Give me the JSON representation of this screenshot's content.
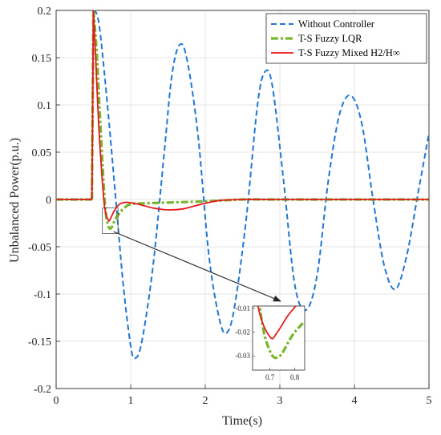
{
  "chart_data": {
    "type": "line",
    "xlabel": "Time(s)",
    "ylabel": "Unbalanced Power(p.u.)",
    "xlim": [
      0,
      5
    ],
    "ylim": [
      -0.2,
      0.2
    ],
    "x_ticks": [
      "0",
      "1",
      "2",
      "3",
      "4",
      "5"
    ],
    "y_ticks": [
      "-0.2",
      "-0.15",
      "-0.1",
      "-0.05",
      "0",
      "0.05",
      "0.1",
      "0.15",
      "0.2"
    ],
    "grid": true,
    "legend_position": "top-right",
    "series": [
      {
        "name": "Without Controller",
        "color": "#1f77d4",
        "style": "dashed",
        "x": [
          0,
          0.48,
          0.5,
          0.55,
          0.6,
          0.7,
          0.8,
          0.9,
          1.0,
          1.06,
          1.15,
          1.3,
          1.45,
          1.55,
          1.65,
          1.75,
          1.9,
          2.05,
          2.2,
          2.3,
          2.4,
          2.55,
          2.7,
          2.8,
          2.9,
          3.05,
          3.2,
          3.35,
          3.5,
          3.65,
          3.8,
          3.95,
          4.1,
          4.25,
          4.4,
          4.55,
          4.7,
          4.85,
          5.0
        ],
        "y": [
          0,
          0,
          0.2,
          0.195,
          0.17,
          0.09,
          0,
          -0.09,
          -0.155,
          -0.168,
          -0.15,
          -0.07,
          0.05,
          0.13,
          0.163,
          0.15,
          0.07,
          -0.06,
          -0.13,
          -0.14,
          -0.11,
          -0.02,
          0.1,
          0.135,
          0.12,
          0.02,
          -0.09,
          -0.117,
          -0.08,
          0.02,
          0.09,
          0.11,
          0.08,
          0,
          -0.07,
          -0.095,
          -0.06,
          0.005,
          0.07
        ]
      },
      {
        "name": "T-S Fuzzy LQR",
        "color": "#77b52a",
        "style": "dashdot",
        "x": [
          0,
          0.48,
          0.5,
          0.54,
          0.58,
          0.62,
          0.66,
          0.7,
          0.74,
          0.8,
          0.9,
          1.0,
          1.2,
          1.6,
          2.0,
          2.5,
          3.0,
          5.0
        ],
        "y": [
          0,
          0,
          0.2,
          0.16,
          0.1,
          0.04,
          -0.01,
          -0.028,
          -0.03,
          -0.02,
          -0.01,
          -0.005,
          -0.004,
          -0.003,
          -0.002,
          0,
          0,
          0
        ]
      },
      {
        "name": "T-S Fuzzy Mixed H2/H∞",
        "color": "#e41a1c",
        "style": "solid",
        "x": [
          0,
          0.48,
          0.5,
          0.53,
          0.57,
          0.61,
          0.65,
          0.7,
          0.73,
          0.78,
          0.85,
          0.95,
          1.1,
          1.3,
          1.5,
          1.7,
          1.85,
          2.0,
          2.2,
          2.5,
          3.0,
          5.0
        ],
        "y": [
          0,
          0,
          0.2,
          0.15,
          0.08,
          0.03,
          -0.008,
          -0.022,
          -0.02,
          -0.012,
          -0.005,
          -0.003,
          -0.005,
          -0.009,
          -0.011,
          -0.01,
          -0.007,
          -0.004,
          -0.001,
          0,
          0,
          0
        ]
      }
    ],
    "inset": {
      "x_ticks": [
        "0.7",
        "0.8"
      ],
      "y_ticks": [
        "-0.01",
        "-0.02",
        "-0.03"
      ],
      "xlim": [
        0.63,
        0.84
      ],
      "ylim": [
        -0.036,
        -0.009
      ]
    }
  }
}
